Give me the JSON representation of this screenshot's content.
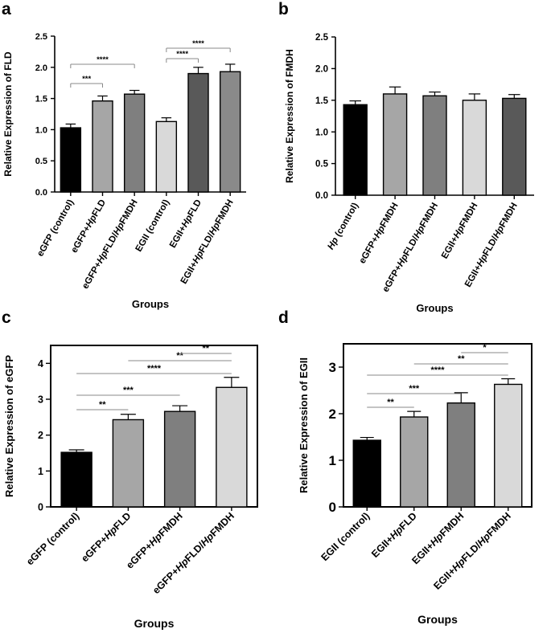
{
  "chart_data": [
    {
      "panel": "a",
      "type": "bar",
      "ylabel": "Relative Expression of FLD",
      "xlabel": "Groups",
      "ylim": [
        0,
        2.5
      ],
      "yticks": [
        "0.0",
        "0.5",
        "1.0",
        "1.5",
        "2.0",
        "2.5"
      ],
      "categories": [
        "eGFP (control)",
        "eGFP+HpFLD",
        "eGFP+HpFLD/HpFMDH",
        "EGII (control)",
        "EGII+HpFLD",
        "EGII+HpFLD/HpFMDH"
      ],
      "values": [
        1.03,
        1.46,
        1.57,
        1.13,
        1.9,
        1.93
      ],
      "errors": [
        0.06,
        0.08,
        0.06,
        0.06,
        0.1,
        0.12
      ],
      "colors": [
        "#000000",
        "#a6a6a6",
        "#7f7f7f",
        "#d9d9d9",
        "#595959",
        "#8a8a8a"
      ],
      "significance": [
        {
          "from": 0,
          "to": 1,
          "label": "***"
        },
        {
          "from": 0,
          "to": 2,
          "label": "****"
        },
        {
          "from": 3,
          "to": 4,
          "label": "****"
        },
        {
          "from": 3,
          "to": 5,
          "label": "****"
        }
      ]
    },
    {
      "panel": "b",
      "type": "bar",
      "ylabel": "Relative Expression of FMDH",
      "xlabel": "Groups",
      "ylim": [
        0,
        2.5
      ],
      "yticks": [
        "0.0",
        "0.5",
        "1.0",
        "1.5",
        "2.0",
        "2.5"
      ],
      "categories": [
        "Hp (control)",
        "eGFP+HpFMDH",
        "eGFP+HpFLD/HpFMDH",
        "EGII+HpFMDH",
        "EGII+HpFLD/HpFMDH"
      ],
      "values": [
        1.43,
        1.6,
        1.57,
        1.5,
        1.53
      ],
      "errors": [
        0.06,
        0.11,
        0.06,
        0.1,
        0.06
      ],
      "colors": [
        "#000000",
        "#a6a6a6",
        "#7f7f7f",
        "#d9d9d9",
        "#595959"
      ],
      "significance": []
    },
    {
      "panel": "c",
      "type": "bar",
      "ylabel": "Relative Expression of eGFP",
      "xlabel": "Groups",
      "ylim": [
        0,
        4.5
      ],
      "yticks": [
        "0",
        "1",
        "2",
        "3",
        "4"
      ],
      "categories": [
        "eGFP (control)",
        "eGFP+HpFLD",
        "eGFP+HpFMDH",
        "eGFP+HpFLD/HpFMDH"
      ],
      "values": [
        1.52,
        2.43,
        2.66,
        3.33
      ],
      "errors": [
        0.07,
        0.15,
        0.16,
        0.28
      ],
      "colors": [
        "#000000",
        "#a6a6a6",
        "#7f7f7f",
        "#d9d9d9"
      ],
      "significance": [
        {
          "from": 0,
          "to": 1,
          "label": "**"
        },
        {
          "from": 0,
          "to": 2,
          "label": "***"
        },
        {
          "from": 0,
          "to": 3,
          "label": "****"
        },
        {
          "from": 1,
          "to": 3,
          "label": "**"
        },
        {
          "from": 2,
          "to": 3,
          "label": "**"
        }
      ]
    },
    {
      "panel": "d",
      "type": "bar",
      "ylabel": "Relative Expression of EGII",
      "xlabel": "Groups",
      "ylim": [
        0,
        3.5
      ],
      "yticks": [
        "0",
        "1",
        "2",
        "3"
      ],
      "categories": [
        "EGII (control)",
        "EGII+HpFLD",
        "EGII+HpFMDH",
        "EGII+HpFLD/HpFMDH"
      ],
      "values": [
        1.43,
        1.93,
        2.23,
        2.63
      ],
      "errors": [
        0.06,
        0.12,
        0.22,
        0.12
      ],
      "colors": [
        "#000000",
        "#a6a6a6",
        "#7f7f7f",
        "#d9d9d9"
      ],
      "significance": [
        {
          "from": 0,
          "to": 1,
          "label": "**"
        },
        {
          "from": 0,
          "to": 2,
          "label": "***"
        },
        {
          "from": 0,
          "to": 3,
          "label": "****"
        },
        {
          "from": 1,
          "to": 3,
          "label": "**"
        },
        {
          "from": 2,
          "to": 3,
          "label": "*"
        }
      ]
    }
  ]
}
